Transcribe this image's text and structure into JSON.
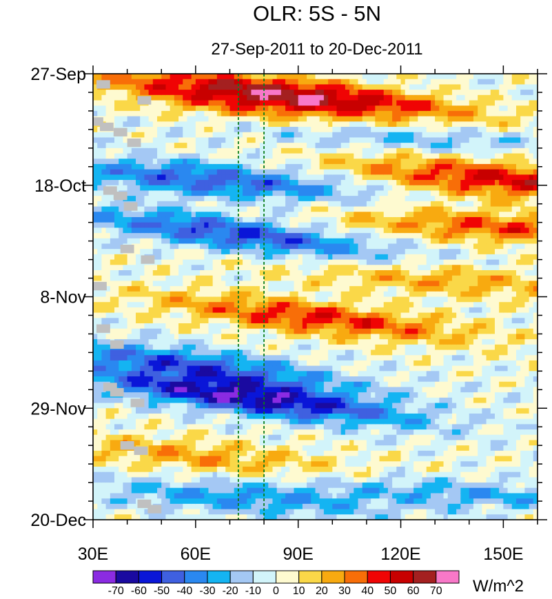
{
  "chart_data": {
    "type": "heatmap",
    "title": "OLR: 5S - 5N",
    "subtitle": "27-Sep-2011 to 20-Dec-2011",
    "xlim": [
      30,
      160
    ],
    "ylim_days_since_start": [
      0,
      84
    ],
    "x_ticks": [
      {
        "value": 30,
        "label": "30E"
      },
      {
        "value": 60,
        "label": "60E"
      },
      {
        "value": 90,
        "label": "90E"
      },
      {
        "value": 120,
        "label": "120E"
      },
      {
        "value": 150,
        "label": "150E"
      }
    ],
    "y_ticks": [
      {
        "value": 0,
        "label": "27-Sep"
      },
      {
        "value": 21,
        "label": "18-Oct"
      },
      {
        "value": 42,
        "label": "8-Nov"
      },
      {
        "value": 63,
        "label": "29-Nov"
      },
      {
        "value": 84,
        "label": "20-Dec"
      }
    ],
    "reference_lines_lon": [
      72.5,
      80
    ],
    "colorbar": {
      "unit_label": "W/m^2",
      "levels": [
        -70,
        -60,
        -50,
        -40,
        -30,
        -20,
        -10,
        0,
        10,
        20,
        30,
        40,
        50,
        60,
        70
      ],
      "level_labels": [
        "-70",
        "-60",
        "-50",
        "-40",
        "-30",
        "-20",
        "-10",
        "0",
        "10",
        "20",
        "30",
        "40",
        "50",
        "60",
        "70"
      ],
      "colors": [
        "#8b2be2",
        "#1a0aa0",
        "#0a16d8",
        "#3f60e0",
        "#2a88f0",
        "#14b4f2",
        "#a4c8f4",
        "#d2f4fa",
        "#fefad0",
        "#fad848",
        "#f8aa10",
        "#f86e08",
        "#f00404",
        "#c80000",
        "#a42020",
        "#f878c8"
      ]
    },
    "missing_color": "#c0c0c0",
    "anomaly_bands": [
      {
        "t0": 5,
        "lon0": 70,
        "slope": 0.09,
        "amp": 35,
        "width": 3.5
      },
      {
        "t0": 4,
        "lon0": 95,
        "slope": 0.07,
        "amp": 55,
        "width": 2.8
      },
      {
        "t0": 20,
        "lon0": 150,
        "slope": 0.05,
        "amp": 50,
        "width": 3.5
      },
      {
        "t0": 20,
        "lon0": 65,
        "slope": 0.05,
        "amp": -45,
        "width": 3.2
      },
      {
        "t0": 30,
        "lon0": 70,
        "slope": 0.08,
        "amp": -50,
        "width": 3.0
      },
      {
        "t0": 46,
        "lon0": 95,
        "slope": 0.07,
        "amp": 45,
        "width": 3.0
      },
      {
        "t0": 29,
        "lon0": 150,
        "slope": 0.04,
        "amp": 38,
        "width": 3.0
      },
      {
        "t0": 61,
        "lon0": 75,
        "slope": 0.08,
        "amp": -68,
        "width": 3.0
      },
      {
        "t0": 55,
        "lon0": 60,
        "slope": 0.08,
        "amp": -45,
        "width": 3.0
      },
      {
        "t0": 72,
        "lon0": 60,
        "slope": 0.06,
        "amp": 25,
        "width": 3.0
      },
      {
        "t0": 80,
        "lon0": 75,
        "slope": 0.04,
        "amp": -30,
        "width": 3.0
      },
      {
        "t0": 39,
        "lon0": 135,
        "slope": 0.04,
        "amp": 25,
        "width": 3.0
      },
      {
        "t0": 12,
        "lon0": 120,
        "slope": 0.04,
        "amp": -25,
        "width": 2.5
      },
      {
        "t0": 79,
        "lon0": 140,
        "slope": 0.04,
        "amp": -25,
        "width": 2.5
      }
    ],
    "missing_cells": [
      {
        "day": 2,
        "lon": 33
      },
      {
        "day": 5,
        "lon": 45
      },
      {
        "day": 9,
        "lon": 31
      },
      {
        "day": 10,
        "lon": 34
      },
      {
        "day": 11,
        "lon": 38
      },
      {
        "day": 13,
        "lon": 42
      },
      {
        "day": 22,
        "lon": 35
      },
      {
        "day": 23,
        "lon": 38
      },
      {
        "day": 25,
        "lon": 41
      },
      {
        "day": 33,
        "lon": 40
      },
      {
        "day": 35,
        "lon": 46
      },
      {
        "day": 40,
        "lon": 32
      },
      {
        "day": 48,
        "lon": 33
      },
      {
        "day": 51,
        "lon": 37
      },
      {
        "day": 59,
        "lon": 35
      },
      {
        "day": 60,
        "lon": 37
      },
      {
        "day": 62,
        "lon": 43
      },
      {
        "day": 70,
        "lon": 40
      },
      {
        "day": 71,
        "lon": 44
      },
      {
        "day": 81,
        "lon": 45
      },
      {
        "day": 82,
        "lon": 48
      }
    ]
  }
}
